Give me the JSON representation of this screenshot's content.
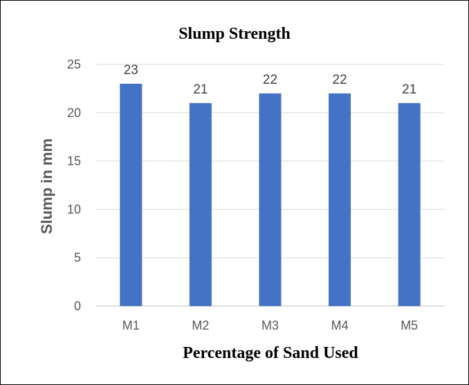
{
  "chart_data": {
    "type": "bar",
    "title": "Slump Strength",
    "xlabel": "Percentage of Sand Used",
    "ylabel": "Slump in mm",
    "categories": [
      "M1",
      "M2",
      "M3",
      "M4",
      "M5"
    ],
    "values": [
      23,
      21,
      22,
      22,
      21
    ],
    "data_labels": [
      "23",
      "21",
      "22",
      "22",
      "21"
    ],
    "ylim": [
      0,
      25
    ],
    "yticks": [
      0,
      5,
      10,
      15,
      20,
      25
    ],
    "ytick_labels": [
      "0",
      "5",
      "10",
      "15",
      "20",
      "25"
    ],
    "grid": true,
    "legend": "none",
    "bar_color": "#4472c4",
    "gridline_color": "#d9d9d9"
  }
}
